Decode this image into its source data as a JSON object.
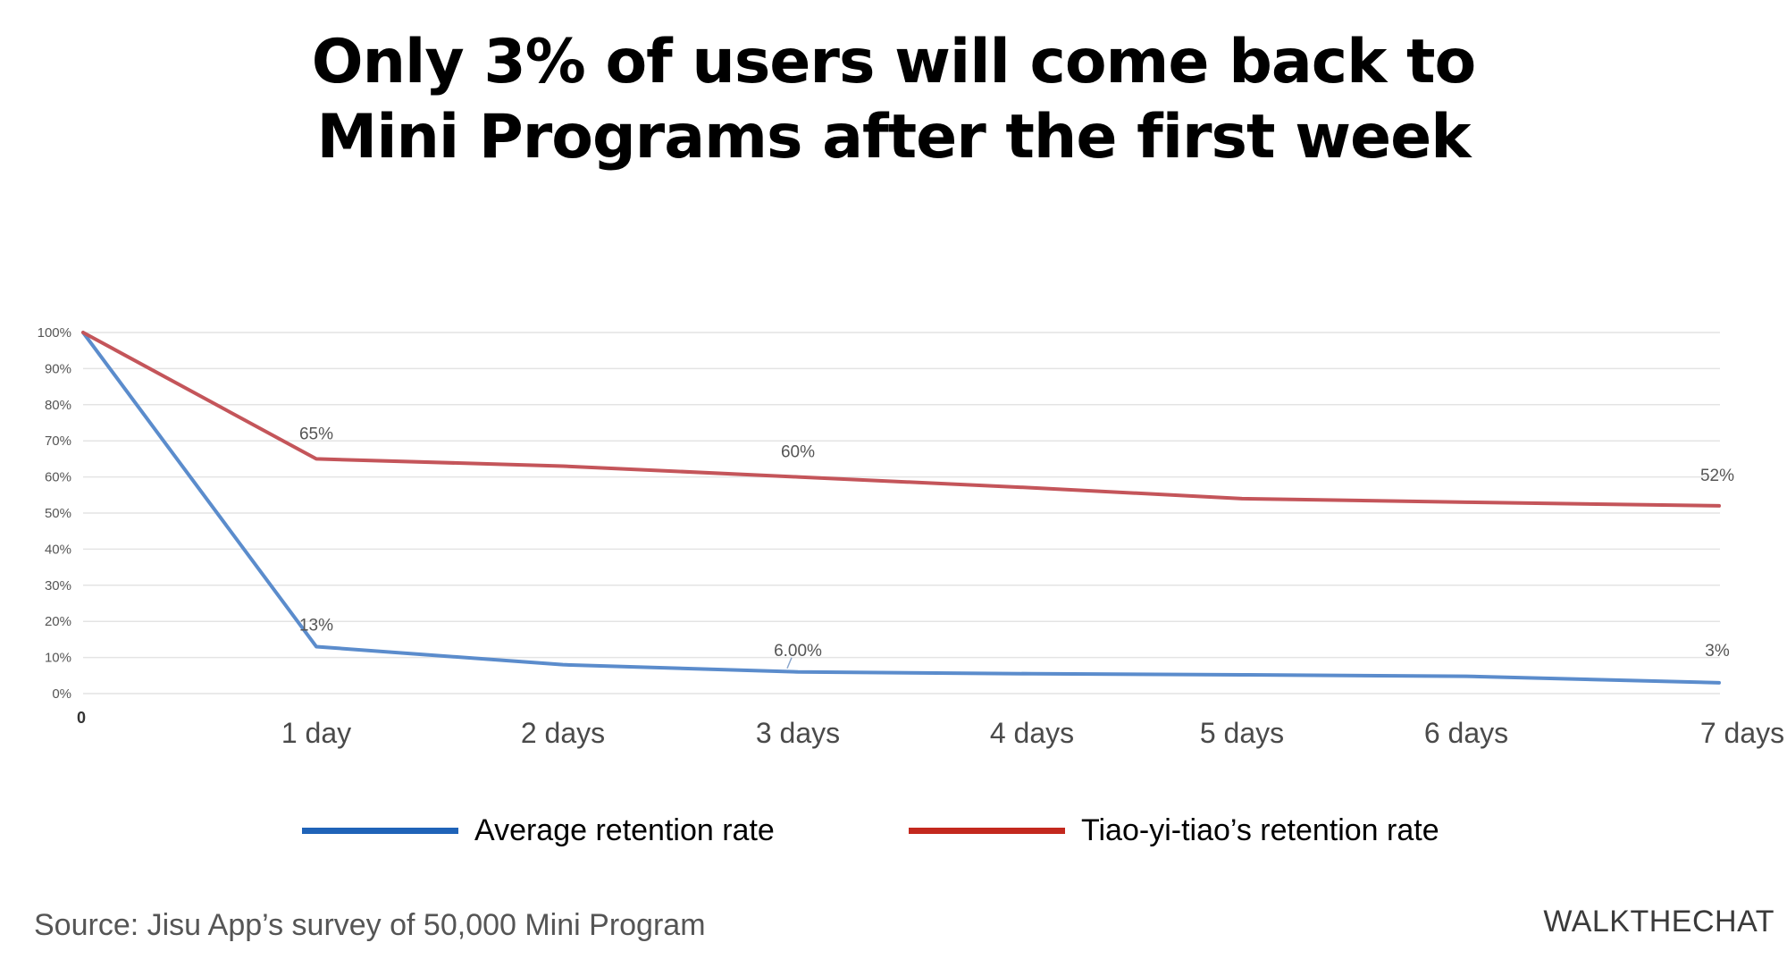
{
  "title_lines": [
    "Only 3% of users will come back to",
    "Mini Programs after the first week"
  ],
  "source": "Source: Jisu App’s survey of 50,000 Mini Program",
  "brand": "WALKTHECHAT",
  "chart_data": {
    "type": "line",
    "x": [
      "0",
      "1 day",
      "2 days",
      "3 days",
      "4 days",
      "5 days",
      "6 days",
      "7 days"
    ],
    "y_ticks": [
      "0%",
      "10%",
      "20%",
      "30%",
      "40%",
      "50%",
      "60%",
      "70%",
      "80%",
      "90%",
      "100%"
    ],
    "ylim": [
      0,
      100
    ],
    "grid": true,
    "legend_position": "bottom",
    "series": [
      {
        "name": "Average retention rate",
        "color": "#1f63b8",
        "plot_color": "#5b8ccc",
        "values": [
          100,
          13,
          8,
          6,
          5.5,
          5.2,
          4.8,
          3
        ],
        "labels": [
          "",
          "13%",
          "",
          "6.00%",
          "",
          "",
          "",
          "3%"
        ]
      },
      {
        "name": "Tiao-yi-tiao’s retention rate",
        "color": "#c3281e",
        "plot_color": "#c4555a",
        "values": [
          100,
          65,
          63,
          60,
          57,
          54,
          53,
          52
        ],
        "labels": [
          "",
          "65%",
          "",
          "60%",
          "",
          "",
          "",
          "52%"
        ]
      }
    ]
  }
}
